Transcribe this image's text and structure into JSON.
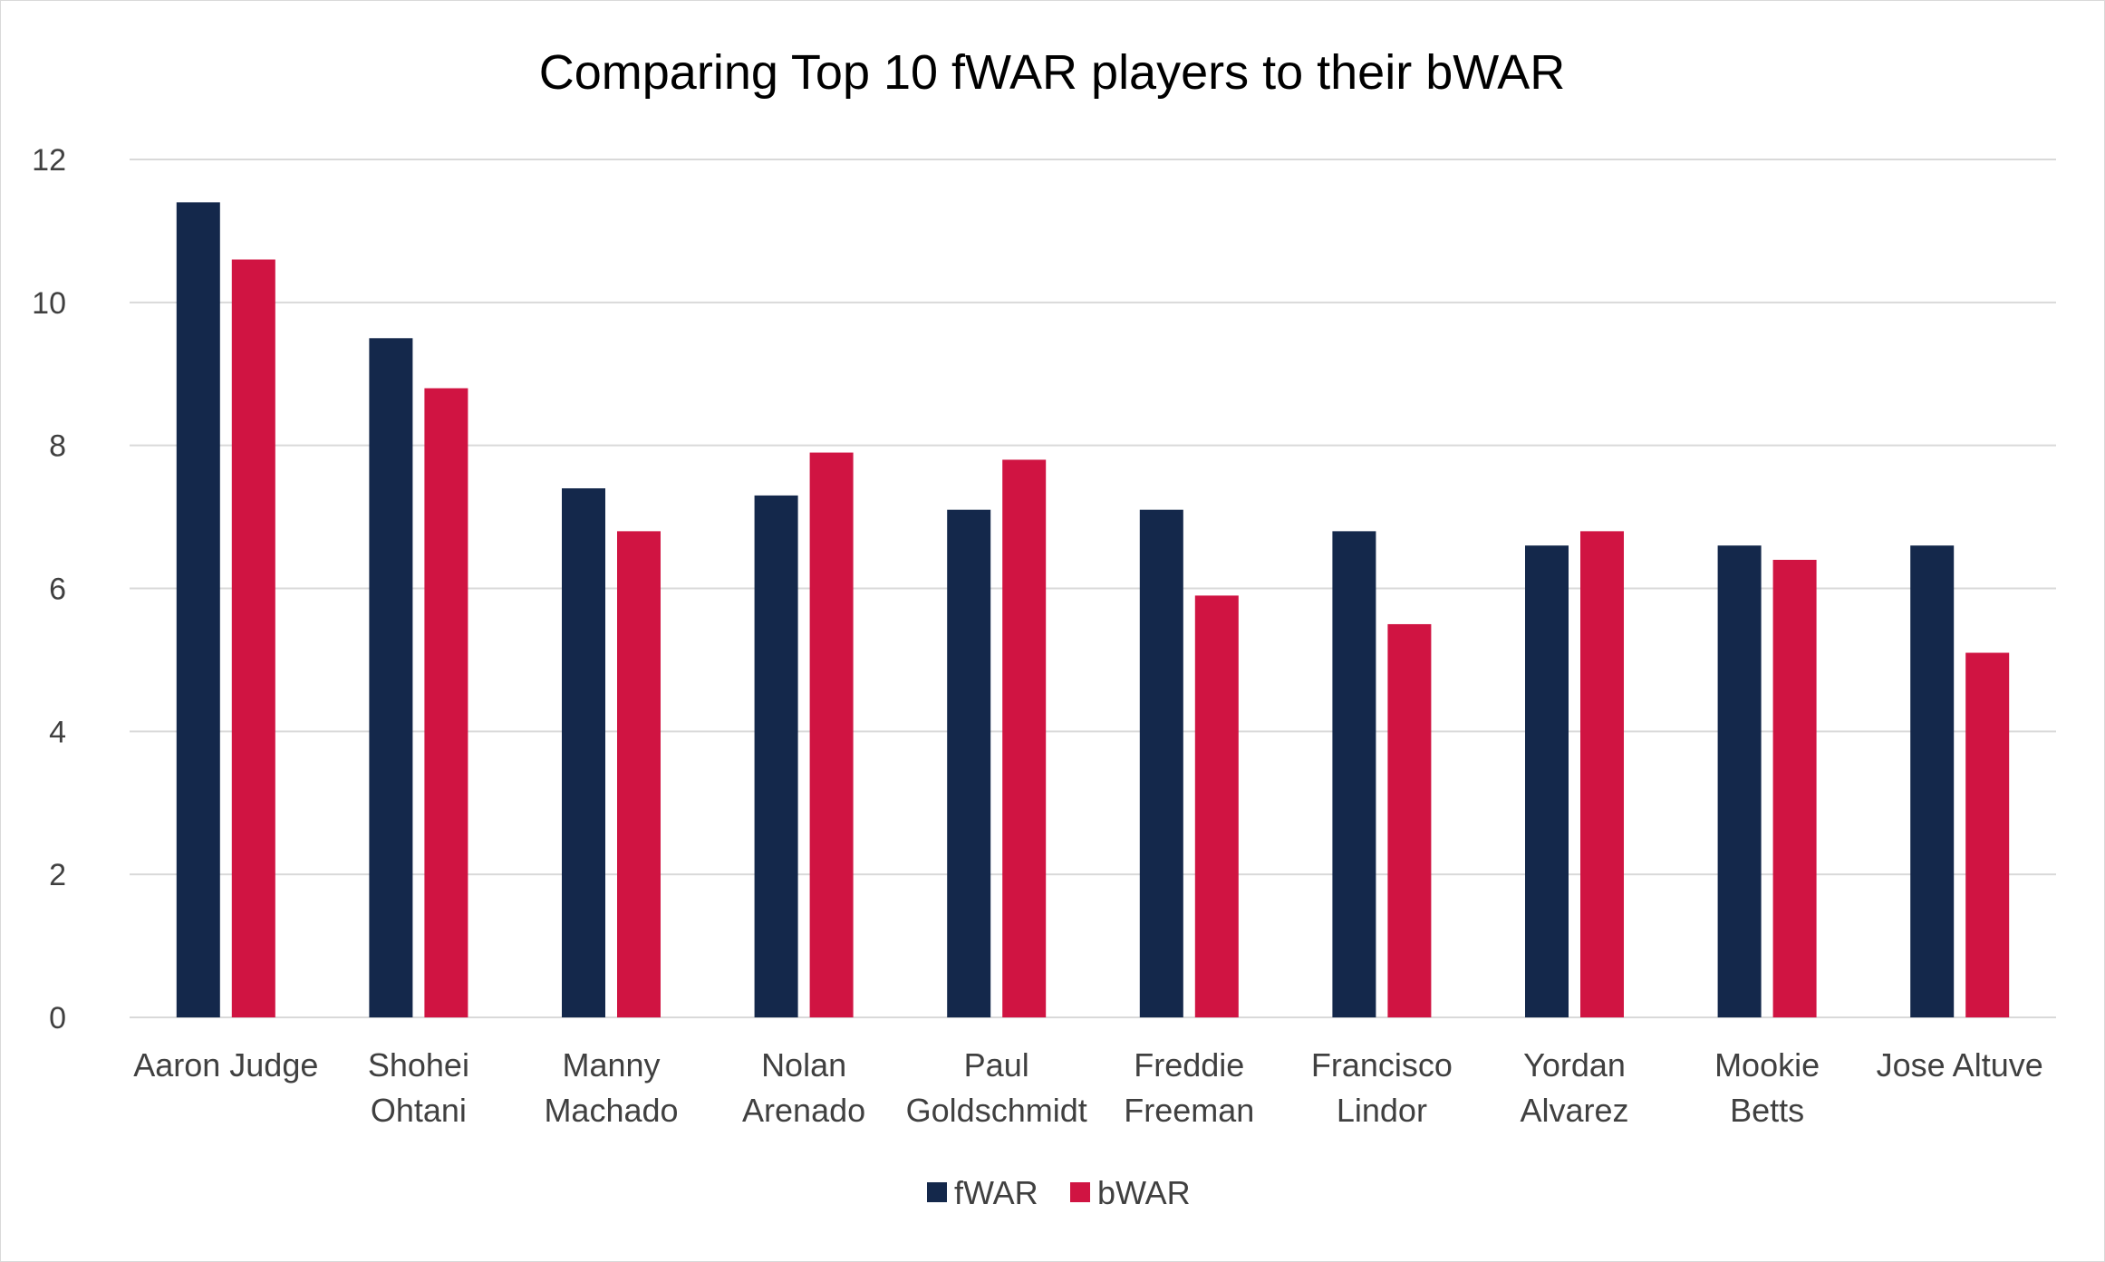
{
  "chart_data": {
    "type": "bar",
    "title": "Comparing Top 10 fWAR players to their bWAR",
    "xlabel": "",
    "ylabel": "",
    "ylim": [
      0,
      12
    ],
    "yticks": [
      "0",
      "2",
      "4",
      "6",
      "8",
      "10",
      "12"
    ],
    "grid": true,
    "legend_position": "bottom",
    "categories": [
      [
        "Aaron Judge"
      ],
      [
        "Shohei",
        "Ohtani"
      ],
      [
        "Manny",
        "Machado"
      ],
      [
        "Nolan",
        "Arenado"
      ],
      [
        "Paul",
        "Goldschmidt"
      ],
      [
        "Freddie",
        "Freeman"
      ],
      [
        "Francisco",
        "Lindor"
      ],
      [
        "Yordan",
        "Alvarez"
      ],
      [
        "Mookie",
        "Betts"
      ],
      [
        "Jose Altuve"
      ]
    ],
    "series": [
      {
        "name": "fWAR",
        "color": "#14284b",
        "values": [
          11.4,
          9.5,
          7.4,
          7.3,
          7.1,
          7.1,
          6.8,
          6.6,
          6.6,
          6.6
        ]
      },
      {
        "name": "bWAR",
        "color": "#d01442",
        "values": [
          10.6,
          8.8,
          6.8,
          7.9,
          7.8,
          5.9,
          5.5,
          6.8,
          6.4,
          5.1
        ]
      }
    ]
  }
}
